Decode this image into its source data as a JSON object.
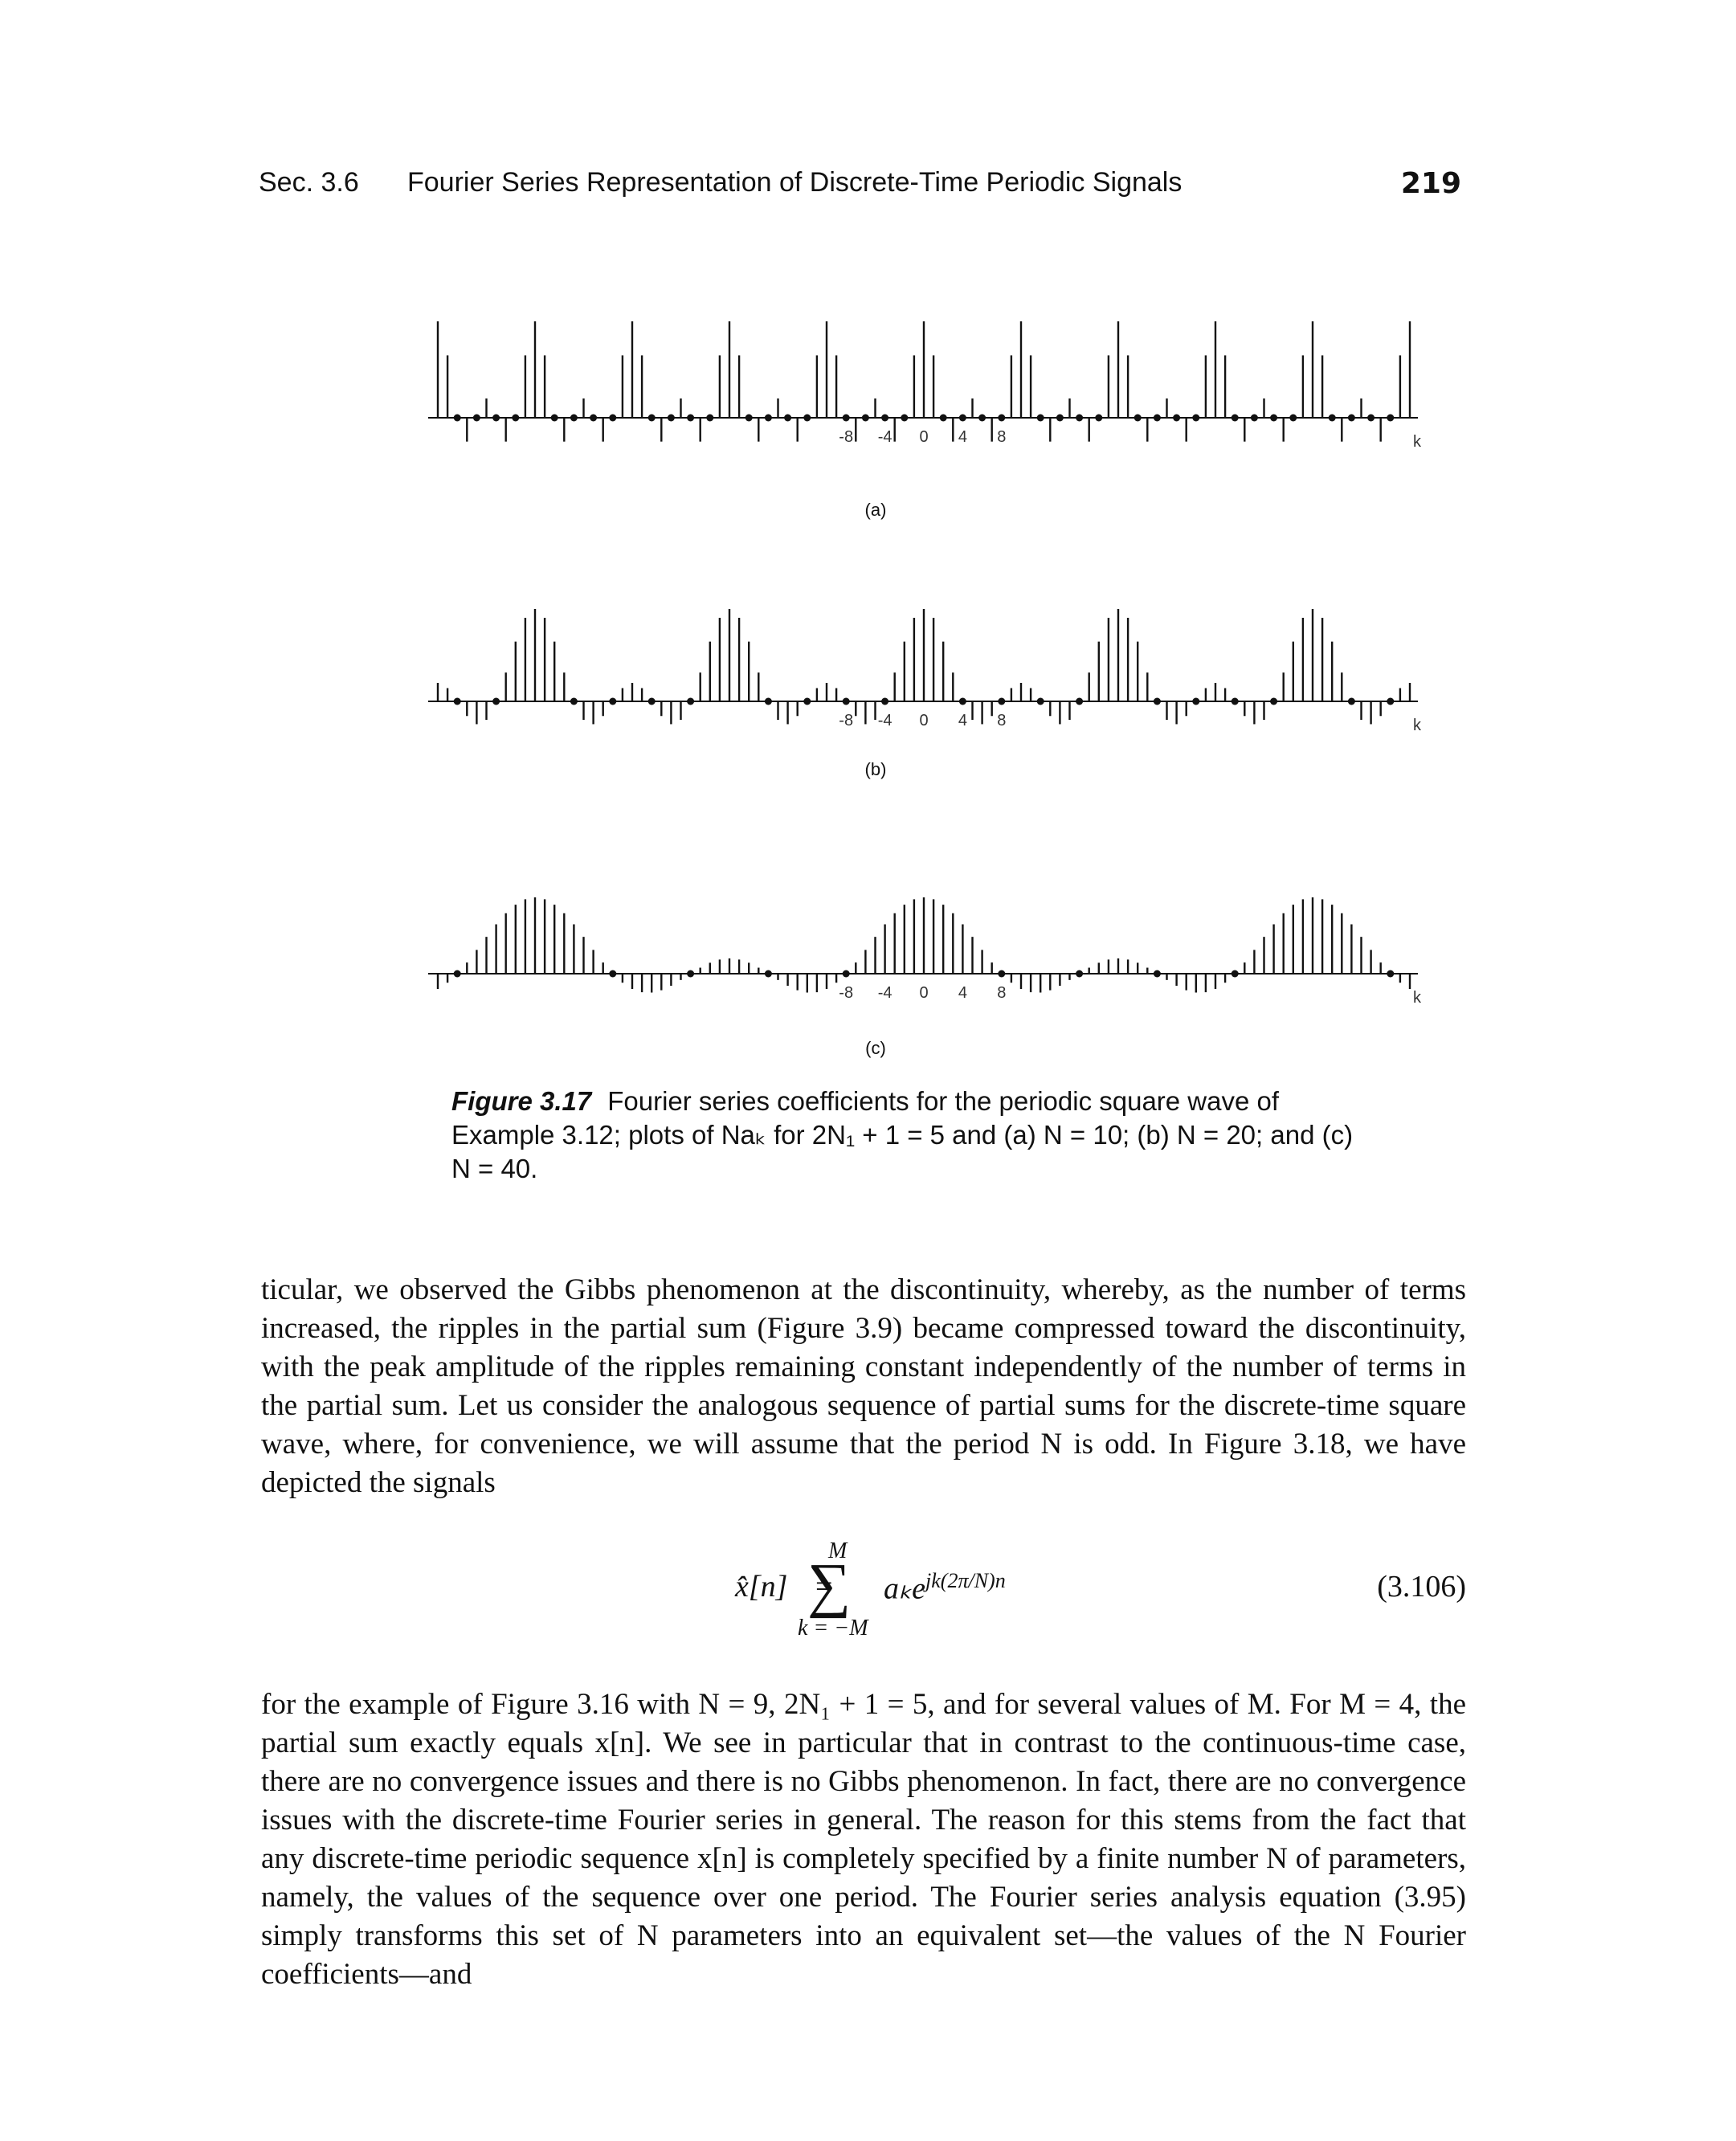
{
  "header": {
    "section": "Sec. 3.6",
    "title": "Fourier Series Representation of Discrete-Time Periodic Signals",
    "page_number": "219"
  },
  "chart_data": [
    {
      "type": "stem",
      "panel_label": "(a)",
      "x_axis_symbol": "k",
      "tick_labels": [
        "-8",
        "-4",
        "0",
        "4",
        "8"
      ],
      "period_N": 10,
      "k_range": [
        -50,
        50
      ],
      "value_at_zero": 5,
      "x": [
        -4,
        -3,
        -2,
        -1,
        0,
        1,
        2,
        3,
        4,
        5
      ],
      "values": [
        1.0,
        -1.0,
        0.0,
        3.24,
        5.0,
        3.24,
        0.0,
        -1.0,
        1.0,
        1.0
      ]
    },
    {
      "type": "stem",
      "panel_label": "(b)",
      "x_axis_symbol": "k",
      "tick_labels": [
        "-8",
        "-4",
        "0",
        "4",
        "8"
      ],
      "period_N": 20,
      "k_range": [
        -50,
        50
      ],
      "value_at_zero": 5
    },
    {
      "type": "stem",
      "panel_label": "(c)",
      "x_axis_symbol": "k",
      "tick_labels": [
        "-8",
        "-4",
        "0",
        "4",
        "8"
      ],
      "period_N": 40,
      "k_range": [
        -50,
        50
      ],
      "value_at_zero": 5
    }
  ],
  "caption": {
    "label": "Figure 3.17",
    "text": "Fourier series coefficients for the periodic square wave of Example 3.12; plots of Naₖ for 2N₁ + 1 = 5 and (a) N = 10; (b) N = 20; and (c) N = 40."
  },
  "paragraph1": "ticular, we observed the Gibbs phenomenon at the discontinuity, whereby, as the number of terms increased, the ripples in the partial sum (Figure 3.9) became compressed toward the discontinuity, with the peak amplitude of the ripples remaining constant independently of the number of terms in the partial sum. Let us consider the analogous sequence of partial sums for the discrete-time square wave, where, for convenience, we will assume that the period N is odd. In Figure 3.18, we have depicted the signals",
  "equation": {
    "lhs": "x̂[n]",
    "equals": "=",
    "upper_limit": "M",
    "sigma": "∑",
    "lower_limit": "k = −M",
    "term": "aₖe",
    "exponent": "jk(2π/N)n",
    "number": "(3.106)"
  },
  "paragraph2": "for the example of Figure 3.16 with N = 9, 2N₁ + 1 = 5, and for several values of M. For M = 4, the partial sum exactly equals x[n]. We see in particular that in contrast to the continuous-time case, there are no convergence issues and there is no Gibbs phenomenon. In fact, there are no convergence issues with the discrete-time Fourier series in general. The reason for this stems from the fact that any discrete-time periodic sequence x[n] is completely specified by a finite number N of parameters, namely, the values of the sequence over one period. The Fourier series analysis equation (3.95) simply transforms this set of N parameters into an equivalent set—the values of the N Fourier coefficients—and"
}
